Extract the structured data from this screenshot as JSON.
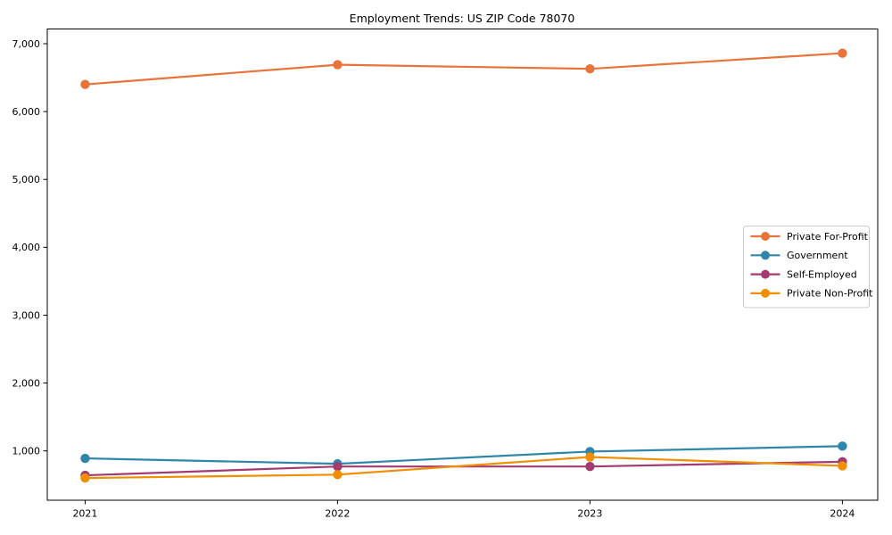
{
  "page": {
    "background_color": "#ffffff",
    "text_color": "#000000"
  },
  "chart_data": {
    "type": "line",
    "title": "Employment Trends: US ZIP Code 78070",
    "xlabel": "",
    "ylabel": "",
    "x": [
      2021,
      2022,
      2023,
      2024
    ],
    "x_tick_labels": [
      "2021",
      "2022",
      "2023",
      "2024"
    ],
    "y_ticks": [
      1000,
      2000,
      3000,
      4000,
      5000,
      6000,
      7000
    ],
    "y_tick_labels": [
      "1,000",
      "2,000",
      "3,000",
      "4,000",
      "5,000",
      "6,000",
      "7,000"
    ],
    "xlim": [
      2020.85,
      2024.14
    ],
    "ylim": [
      273,
      7217
    ],
    "grid": false,
    "legend_position": "center-right",
    "marker": "circle",
    "series": [
      {
        "name": "Private For-Profit",
        "color": "#e8743b",
        "values": [
          6400,
          6690,
          6630,
          6860
        ]
      },
      {
        "name": "Government",
        "color": "#2e86ab",
        "values": [
          890,
          810,
          990,
          1070
        ]
      },
      {
        "name": "Self-Employed",
        "color": "#a23b72",
        "values": [
          640,
          770,
          770,
          840
        ]
      },
      {
        "name": "Private Non-Profit",
        "color": "#f18f01",
        "values": [
          600,
          650,
          910,
          780
        ]
      }
    ]
  }
}
